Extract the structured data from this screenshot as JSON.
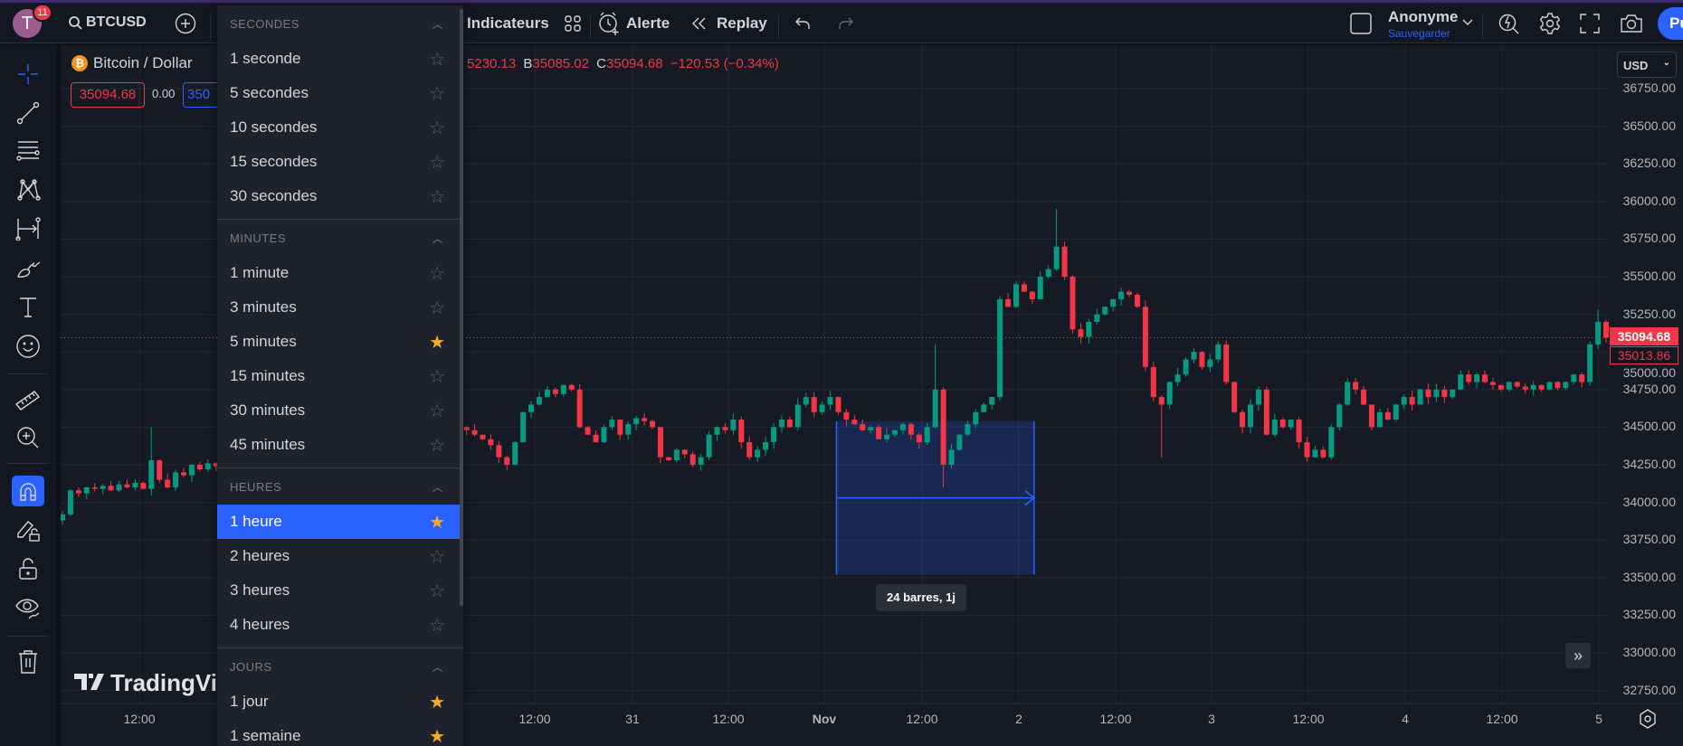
{
  "topbar": {
    "badge": "11",
    "avatar_letter": "T",
    "symbol": "BTCUSD",
    "indicators": "Indicateurs",
    "alert": "Alerte",
    "replay": "Replay",
    "user": "Anonyme",
    "save": "Sauvegarder",
    "publish": "Pu"
  },
  "legend": {
    "name": "Bitcoin / Dollar",
    "ohlc_visible": "5230.13",
    "low_label": "B",
    "low": "35085.02",
    "close_label": "C",
    "close": "35094.68",
    "change": "−120.53 (−0.34%)",
    "sell": "35094.68",
    "spread": "0.00",
    "buy": "350"
  },
  "price_axis": {
    "currency": "USD",
    "labels": [
      "36750.00",
      "36500.00",
      "36250.00",
      "36000.00",
      "35750.00",
      "35500.00",
      "35250.00",
      "35000.00",
      "34750.00",
      "34500.00",
      "34250.00",
      "34000.00",
      "33750.00",
      "33500.00",
      "33250.00",
      "33000.00",
      "32750.00"
    ],
    "current_price": "35094.68",
    "second_price": "35013.86"
  },
  "time_axis": {
    "labels": [
      "12:00",
      "12:00",
      "31",
      "12:00",
      "Nov",
      "12:00",
      "2",
      "12:00",
      "3",
      "12:00",
      "4",
      "12:00",
      "5"
    ]
  },
  "measure": {
    "label": "24 barres, 1j"
  },
  "logo": "TradingView",
  "colors": {
    "up": "#089981",
    "down": "#f23645",
    "accent": "#2962ff",
    "favorite": "#f9a825"
  },
  "interval_menu": {
    "sections": [
      {
        "title": "SECONDES",
        "items": [
          {
            "label": "1 seconde",
            "fav": false
          },
          {
            "label": "5 secondes",
            "fav": false
          },
          {
            "label": "10 secondes",
            "fav": false
          },
          {
            "label": "15 secondes",
            "fav": false
          },
          {
            "label": "30 secondes",
            "fav": false
          }
        ]
      },
      {
        "title": "MINUTES",
        "items": [
          {
            "label": "1 minute",
            "fav": false
          },
          {
            "label": "3 minutes",
            "fav": false
          },
          {
            "label": "5 minutes",
            "fav": true
          },
          {
            "label": "15 minutes",
            "fav": false
          },
          {
            "label": "30 minutes",
            "fav": false
          },
          {
            "label": "45 minutes",
            "fav": false
          }
        ]
      },
      {
        "title": "HEURES",
        "items": [
          {
            "label": "1 heure",
            "fav": true,
            "selected": true
          },
          {
            "label": "2 heures",
            "fav": false
          },
          {
            "label": "3 heures",
            "fav": false
          },
          {
            "label": "4 heures",
            "fav": false
          }
        ]
      },
      {
        "title": "JOURS",
        "items": [
          {
            "label": "1 jour",
            "fav": true
          },
          {
            "label": "1 semaine",
            "fav": true
          }
        ]
      }
    ]
  },
  "chart_data": {
    "type": "candlestick",
    "interval": "1h",
    "closes": [
      33920,
      34080,
      34060,
      34100,
      34090,
      34110,
      34080,
      34120,
      34100,
      34130,
      34090,
      34280,
      34150,
      34100,
      34200,
      34180,
      34250,
      34220,
      34260,
      34240,
      34300,
      34350,
      34280,
      34400,
      34450,
      34380,
      34500,
      34420,
      34350,
      34300,
      34250,
      34320,
      34400,
      34450,
      34500,
      34420,
      34380,
      34450,
      34500,
      34550,
      34480,
      34420,
      34380,
      34450,
      34500,
      34550,
      34480,
      34420,
      34450,
      34500,
      34480,
      34450,
      34420,
      34380,
      34300,
      34250,
      34400,
      34600,
      34650,
      34700,
      34750,
      34720,
      34780,
      34750,
      34500,
      34450,
      34400,
      34500,
      34550,
      34450,
      34520,
      34560,
      34540,
      34500,
      34300,
      34280,
      34350,
      34320,
      34250,
      34300,
      34450,
      34500,
      34480,
      34550,
      34400,
      34300,
      34350,
      34400,
      34500,
      34550,
      34500,
      34650,
      34700,
      34600,
      34650,
      34700,
      34600,
      34550,
      34520,
      34480,
      34500,
      34420,
      34450,
      34480,
      34520,
      34450,
      34400,
      34500,
      34750,
      34250,
      34350,
      34450,
      34520,
      34600,
      34650,
      34700,
      35350,
      35300,
      35450,
      35400,
      35350,
      35500,
      35550,
      35700,
      35500,
      35150,
      35100,
      35200,
      35250,
      35300,
      35350,
      35400,
      35380,
      35300,
      34900,
      34700,
      34650,
      34800,
      34850,
      34950,
      35000,
      34900,
      34950,
      35050,
      34800,
      34600,
      34500,
      34650,
      34750,
      34450,
      34550,
      34500,
      34550,
      34400,
      34300,
      34350,
      34300,
      34500,
      34650,
      34800,
      34750,
      34650,
      34500,
      34600,
      34550,
      34650,
      34700,
      34650,
      34750,
      34700,
      34750,
      34700,
      34750,
      34850,
      34800,
      34850,
      34800,
      34780,
      34750,
      34800,
      34770,
      34750,
      34780,
      34750,
      34800,
      34760,
      34800,
      34850,
      34800,
      35050,
      35200,
      35094.68
    ],
    "spikes": [
      {
        "bar": 11,
        "high": 34500
      },
      {
        "bar": 108,
        "high": 35050
      },
      {
        "bar": 109,
        "low": 34100
      },
      {
        "bar": 123,
        "high": 35950
      },
      {
        "bar": 136,
        "low": 34300
      },
      {
        "bar": 190,
        "high": 35280
      }
    ],
    "ylim": [
      32750,
      36750
    ],
    "measure_range": {
      "from_bar": 96,
      "to_bar": 120,
      "high": 34540,
      "low": 33520
    }
  }
}
